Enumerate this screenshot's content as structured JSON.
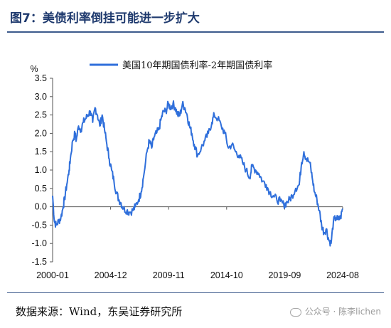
{
  "figure": {
    "title": "图7：美债利率倒挂可能进一步扩大",
    "source": "数据来源：Wind，东吴证券研究所",
    "watermark": "公众号 · 陈李lichen",
    "watermark_icon": "wechat-icon"
  },
  "chart_data": {
    "type": "line",
    "title": "",
    "xlabel": "",
    "ylabel": "%",
    "ylim": [
      -1.5,
      3.5
    ],
    "yticks": [
      "3.5",
      "3.0",
      "2.5",
      "2.0",
      "1.5",
      "1.0",
      "0.5",
      "0.0",
      "-0.5",
      "-1.0",
      "-1.5"
    ],
    "ytick_values": [
      3.5,
      3.0,
      2.5,
      2.0,
      1.5,
      1.0,
      0.5,
      0.0,
      -0.5,
      -1.0,
      -1.5
    ],
    "xticks": [
      "2000-01",
      "2004-12",
      "2009-11",
      "2014-10",
      "2019-09",
      "2024-08"
    ],
    "xtick_values": [
      2000.0,
      2004.917,
      2009.833,
      2014.75,
      2019.667,
      2024.583
    ],
    "xlim": [
      2000.0,
      2024.583
    ],
    "grid": false,
    "legend_position": "top-center",
    "line_color": "#2f6fdb",
    "series": [
      {
        "name": "美国10年期国债利率-2年期国债利率",
        "x": [
          2000.0,
          2000.15,
          2000.3,
          2000.5,
          2000.7,
          2000.9,
          2001.0,
          2001.2,
          2001.4,
          2001.5,
          2001.7,
          2001.9,
          2002.0,
          2002.2,
          2002.4,
          2002.6,
          2002.8,
          2003.0,
          2003.2,
          2003.4,
          2003.6,
          2003.8,
          2004.0,
          2004.2,
          2004.4,
          2004.6,
          2004.8,
          2005.0,
          2005.2,
          2005.4,
          2005.6,
          2005.8,
          2006.0,
          2006.3,
          2006.5,
          2006.8,
          2007.0,
          2007.3,
          2007.5,
          2007.7,
          2008.0,
          2008.2,
          2008.4,
          2008.6,
          2008.8,
          2009.0,
          2009.2,
          2009.4,
          2009.6,
          2009.8,
          2010.0,
          2010.2,
          2010.4,
          2010.6,
          2010.8,
          2011.0,
          2011.2,
          2011.4,
          2011.6,
          2011.8,
          2012.0,
          2012.3,
          2012.6,
          2012.9,
          2013.2,
          2013.5,
          2013.7,
          2014.0,
          2014.3,
          2014.6,
          2014.9,
          2015.2,
          2015.5,
          2015.8,
          2016.1,
          2016.4,
          2016.7,
          2016.9,
          2017.2,
          2017.5,
          2017.8,
          2018.1,
          2018.4,
          2018.7,
          2019.0,
          2019.3,
          2019.6,
          2019.8,
          2020.1,
          2020.3,
          2020.6,
          2020.9,
          2021.1,
          2021.3,
          2021.5,
          2021.8,
          2022.0,
          2022.2,
          2022.4,
          2022.6,
          2022.8,
          2023.0,
          2023.2,
          2023.4,
          2023.6,
          2023.8,
          2024.0,
          2024.2,
          2024.4,
          2024.583
        ],
        "y": [
          0.3,
          -0.4,
          -0.5,
          -0.4,
          -0.3,
          0.0,
          0.2,
          0.6,
          1.0,
          1.3,
          1.8,
          2.0,
          1.8,
          2.2,
          2.1,
          2.3,
          2.4,
          2.5,
          2.6,
          2.3,
          2.7,
          2.5,
          2.2,
          2.5,
          2.1,
          1.7,
          1.3,
          1.0,
          0.7,
          0.4,
          0.2,
          0.1,
          -0.05,
          -0.1,
          -0.15,
          -0.1,
          0.0,
          0.2,
          0.4,
          0.8,
          1.5,
          1.8,
          1.6,
          1.9,
          2.0,
          2.1,
          2.4,
          2.6,
          2.6,
          2.8,
          2.7,
          2.8,
          2.7,
          2.5,
          2.5,
          2.8,
          2.7,
          2.5,
          2.2,
          2.0,
          1.7,
          1.4,
          1.6,
          1.8,
          2.0,
          2.3,
          2.5,
          2.4,
          2.2,
          2.0,
          1.6,
          1.7,
          1.5,
          1.4,
          1.2,
          1.0,
          0.8,
          1.1,
          1.0,
          0.9,
          0.7,
          0.6,
          0.4,
          0.3,
          0.2,
          0.15,
          0.05,
          0.1,
          0.2,
          0.3,
          0.5,
          0.6,
          1.2,
          1.5,
          1.3,
          1.2,
          0.8,
          0.4,
          0.2,
          -0.1,
          -0.5,
          -0.7,
          -0.6,
          -0.9,
          -1.0,
          -0.4,
          -0.3,
          -0.35,
          -0.3,
          -0.05
        ]
      }
    ]
  }
}
